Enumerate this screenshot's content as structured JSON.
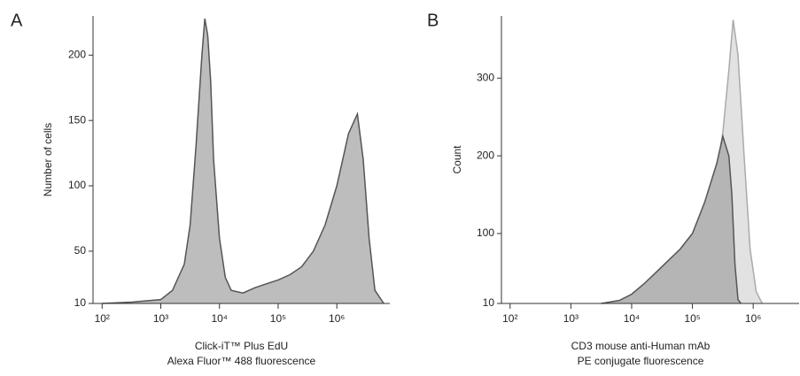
{
  "chart_data": [
    {
      "type": "area",
      "panel_label": "A",
      "xscale": "log",
      "xlabel": [
        "Click-iT™ Plus EdU",
        "Alexa Fluor™ 488 fluorescence"
      ],
      "ylabel": "Number of cells",
      "xlim": [
        70,
        8000000
      ],
      "ylim": [
        10,
        230
      ],
      "xticks": [
        {
          "value": 100,
          "label": "10²"
        },
        {
          "value": 1000,
          "label": "10³"
        },
        {
          "value": 10000,
          "label": "10⁴"
        },
        {
          "value": 100000,
          "label": "10⁵"
        },
        {
          "value": 1000000,
          "label": "10⁶"
        }
      ],
      "yticks": [
        10,
        50,
        100,
        150,
        200
      ],
      "series": [
        {
          "color": "#bdbdbd",
          "line_color": "#555555",
          "x": [
            100,
            316,
            1000,
            1585,
            2512,
            3162,
            3981,
            5012,
            5623,
            6310,
            7079,
            7943,
            10000,
            12589,
            15849,
            25119,
            39811,
            63096,
            100000,
            158489,
            251189,
            398107,
            630957,
            1000000,
            1584893,
            2238721,
            2818383,
            3548134,
            4466836,
            6309573
          ],
          "values": [
            10,
            11,
            13,
            20,
            40,
            70,
            130,
            200,
            228,
            215,
            180,
            120,
            60,
            30,
            20,
            18,
            22,
            25,
            28,
            32,
            38,
            50,
            70,
            100,
            140,
            155,
            120,
            60,
            20,
            10
          ]
        }
      ]
    },
    {
      "type": "area",
      "panel_label": "B",
      "xscale": "log",
      "xlabel": [
        "CD3 mouse anti-Human mAb",
        "PE conjugate fluorescence"
      ],
      "ylabel": "Count",
      "xlim": [
        72,
        5700000
      ],
      "ylim": [
        10,
        380
      ],
      "xticks": [
        {
          "value": 100,
          "label": "10²"
        },
        {
          "value": 1000,
          "label": "10³"
        },
        {
          "value": 10000,
          "label": "10⁴"
        },
        {
          "value": 100000,
          "label": "10⁵"
        },
        {
          "value": 1000000,
          "label": "10⁶"
        }
      ],
      "yticks": [
        10,
        100,
        200,
        300
      ],
      "series": [
        {
          "color": "#e2e2e2",
          "line_color": "#aaaaaa",
          "x": [
            3162,
            6310,
            10000,
            15849,
            25119,
            39811,
            63096,
            100000,
            158489,
            251189,
            316228,
            398107,
            467735,
            562341,
            707946,
            891251,
            1122018,
            1412538
          ],
          "values": [
            10,
            13,
            20,
            33,
            48,
            62,
            80,
            100,
            135,
            180,
            230,
            310,
            375,
            330,
            200,
            80,
            25,
            10
          ]
        },
        {
          "color": "#b5b5b5",
          "line_color": "#555555",
          "x": [
            3162,
            6310,
            10000,
            15849,
            25119,
            39811,
            63096,
            100000,
            158489,
            251189,
            316228,
            398107,
            446684,
            501187,
            562341,
            630957
          ],
          "values": [
            10,
            14,
            22,
            35,
            50,
            65,
            80,
            100,
            140,
            190,
            225,
            200,
            150,
            60,
            15,
            10
          ]
        }
      ]
    }
  ]
}
